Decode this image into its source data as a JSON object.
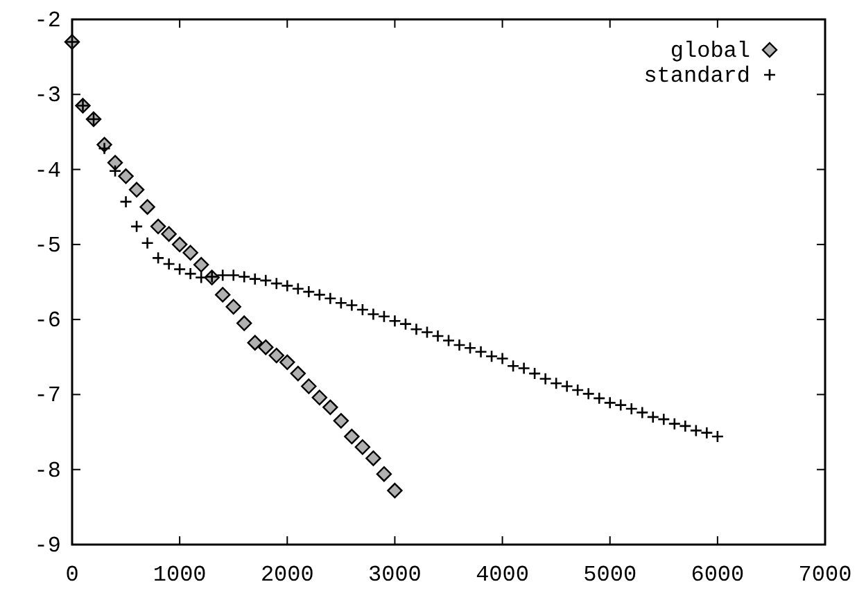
{
  "chart_data": {
    "type": "scatter",
    "xlim": [
      0,
      7000
    ],
    "xticks": [
      0,
      1000,
      2000,
      3000,
      4000,
      5000,
      6000,
      7000
    ],
    "ylim": [
      -9,
      -2
    ],
    "yticks": [
      -9,
      -8,
      -7,
      -6,
      -5,
      -4,
      -3,
      -2
    ],
    "legend": "top right",
    "series": [
      {
        "name": "global",
        "color": "#000000",
        "marker": "diamond",
        "x": [
          0,
          100,
          200,
          300,
          400,
          500,
          600,
          700,
          800,
          900,
          1000,
          1100,
          1200,
          1300,
          1400,
          1500,
          1600,
          1700,
          1800,
          1900,
          2000,
          2100,
          2200,
          2300,
          2400,
          2500,
          2600,
          2700,
          2800,
          2900,
          3000
        ],
        "values": [
          -2.3,
          -3.15,
          -3.33,
          -3.67,
          -3.91,
          -4.09,
          -4.27,
          -4.5,
          -4.76,
          -4.86,
          -5.0,
          -5.11,
          -5.27,
          -5.44,
          -5.67,
          -5.83,
          -6.05,
          -6.31,
          -6.37,
          -6.48,
          -6.57,
          -6.72,
          -6.89,
          -7.04,
          -7.17,
          -7.35,
          -7.56,
          -7.7,
          -7.85,
          -8.06,
          -8.28
        ]
      },
      {
        "name": "standard",
        "color": "#000000",
        "marker": "cross",
        "x": [
          0,
          100,
          200,
          300,
          400,
          500,
          600,
          700,
          800,
          900,
          1000,
          1100,
          1200,
          1300,
          1400,
          1500,
          1600,
          1700,
          1800,
          1900,
          2000,
          2100,
          2200,
          2300,
          2400,
          2500,
          2600,
          2700,
          2800,
          2900,
          3000,
          3100,
          3200,
          3300,
          3400,
          3500,
          3600,
          3700,
          3800,
          3900,
          4000,
          4100,
          4200,
          4300,
          4400,
          4500,
          4600,
          4700,
          4800,
          4900,
          5000,
          5100,
          5200,
          5300,
          5400,
          5500,
          5600,
          5700,
          5800,
          5900,
          6000
        ],
        "values": [
          -2.3,
          -3.15,
          -3.33,
          -3.72,
          -4.02,
          -4.43,
          -4.76,
          -4.98,
          -5.18,
          -5.26,
          -5.33,
          -5.39,
          -5.44,
          -5.43,
          -5.41,
          -5.41,
          -5.43,
          -5.46,
          -5.48,
          -5.52,
          -5.55,
          -5.59,
          -5.63,
          -5.67,
          -5.72,
          -5.78,
          -5.81,
          -5.87,
          -5.93,
          -5.96,
          -6.02,
          -6.06,
          -6.13,
          -6.17,
          -6.22,
          -6.28,
          -6.34,
          -6.38,
          -6.43,
          -6.49,
          -6.52,
          -6.62,
          -6.65,
          -6.72,
          -6.79,
          -6.85,
          -6.89,
          -6.94,
          -6.99,
          -7.05,
          -7.11,
          -7.14,
          -7.19,
          -7.24,
          -7.3,
          -7.33,
          -7.39,
          -7.42,
          -7.48,
          -7.51,
          -7.56
        ]
      }
    ]
  }
}
